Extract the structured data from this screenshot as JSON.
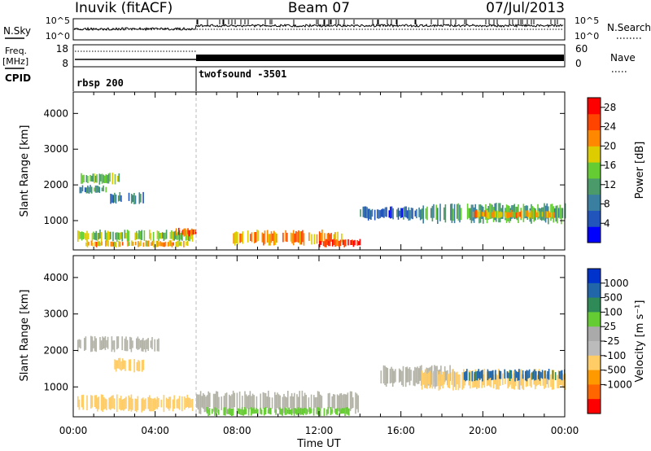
{
  "header": {
    "station": "Inuvik (fitACF)",
    "beam": "Beam 07",
    "date": "07/Jul/2013"
  },
  "scan_panels": {
    "nsky_label": "N.Sky",
    "nsearch_label": "N.Search",
    "noise_ticks": [
      "10^5",
      "10^0"
    ],
    "freq_label": "Freq.",
    "freq_unit": "[MHz]",
    "freq_ticks": [
      "18",
      "8"
    ],
    "nave_label": "Nave",
    "nave_ticks": [
      "60",
      "0"
    ],
    "cpid_label": "CPID",
    "cpid_segments": [
      {
        "name": "rbsp 200",
        "start_hour": 0,
        "end_hour": 6
      },
      {
        "name": "twofsound -3501",
        "start_hour": 6,
        "end_hour": 24
      }
    ]
  },
  "colors": {
    "power": [
      "#0000ff",
      "#2255bb",
      "#3b7fa0",
      "#4a9a6a",
      "#66cc33",
      "#ddcc00",
      "#ff8800",
      "#ff4400",
      "#ff0000"
    ],
    "velocity": [
      "#ff0000",
      "#ff6600",
      "#ff9900",
      "#ffcc66",
      "#bbbbbb",
      "#aaaaaa",
      "#66cc33",
      "#2e8b57",
      "#2266aa",
      "#0033cc"
    ],
    "ground_scatter": "#b4b4a8"
  },
  "chart_data": [
    {
      "type": "heatmap",
      "name": "power",
      "ylabel": "Slant Range [km]",
      "xlabel": "Time UT",
      "x_ticks": [
        "00:00",
        "04:00",
        "08:00",
        "12:00",
        "16:00",
        "20:00",
        "00:00"
      ],
      "y_ticks": [
        1000,
        2000,
        3000,
        4000
      ],
      "xlim": [
        0,
        24
      ],
      "ylim": [
        180,
        4600
      ],
      "colorbar": {
        "label": "Power [dB]",
        "ticks": [
          4,
          8,
          12,
          16,
          20,
          24,
          28
        ],
        "range": [
          0,
          30
        ]
      },
      "echo_regions": [
        {
          "t0": 0.3,
          "t1": 2.4,
          "r0": 2000,
          "r1": 2350,
          "level": 14
        },
        {
          "t0": 0.3,
          "t1": 1.6,
          "r0": 1750,
          "r1": 2000,
          "level": 10
        },
        {
          "t0": 1.8,
          "t1": 3.4,
          "r0": 1450,
          "r1": 1800,
          "level": 9
        },
        {
          "t0": 0.2,
          "t1": 5.8,
          "r0": 400,
          "r1": 750,
          "level": 15
        },
        {
          "t0": 0.6,
          "t1": 5.6,
          "r0": 250,
          "r1": 450,
          "level": 20
        },
        {
          "t0": 5.0,
          "t1": 6.0,
          "r0": 550,
          "r1": 800,
          "level": 26
        },
        {
          "t0": 7.8,
          "t1": 13.2,
          "r0": 300,
          "r1": 750,
          "level": 22
        },
        {
          "t0": 12.0,
          "t1": 14.0,
          "r0": 250,
          "r1": 500,
          "level": 26
        },
        {
          "t0": 14.0,
          "t1": 17.0,
          "r0": 1000,
          "r1": 1400,
          "level": 7
        },
        {
          "t0": 17.0,
          "t1": 24.0,
          "r0": 900,
          "r1": 1500,
          "level": 12
        },
        {
          "t0": 19.5,
          "t1": 23.5,
          "r0": 1050,
          "r1": 1300,
          "level": 20
        }
      ]
    },
    {
      "type": "heatmap",
      "name": "velocity",
      "ylabel": "Slant Range [km]",
      "xlabel": "Time UT",
      "x_ticks": [
        "00:00",
        "04:00",
        "08:00",
        "12:00",
        "16:00",
        "20:00",
        "00:00"
      ],
      "y_ticks": [
        1000,
        2000,
        3000,
        4000
      ],
      "xlim": [
        0,
        24
      ],
      "ylim": [
        180,
        4600
      ],
      "colorbar": {
        "label": "Velocity [m s⁻¹]",
        "ticks": [
          "1000",
          "500",
          "100",
          "25",
          "-25",
          "-100",
          "-500",
          "-1000"
        ]
      },
      "echo_regions": [
        {
          "t0": 0.2,
          "t1": 4.2,
          "r0": 1950,
          "r1": 2400,
          "level": "ground"
        },
        {
          "t0": 0.2,
          "t1": 5.8,
          "r0": 300,
          "r1": 800,
          "level": -300
        },
        {
          "t0": 2.0,
          "t1": 3.5,
          "r0": 1400,
          "r1": 1800,
          "level": -150
        },
        {
          "t0": 6.0,
          "t1": 14.0,
          "r0": 250,
          "r1": 900,
          "level": "ground"
        },
        {
          "t0": 6.5,
          "t1": 13.5,
          "r0": 200,
          "r1": 450,
          "level": 60
        },
        {
          "t0": 15.0,
          "t1": 18.5,
          "r0": 1000,
          "r1": 1600,
          "level": "ground"
        },
        {
          "t0": 17.0,
          "t1": 24.0,
          "r0": 900,
          "r1": 1500,
          "level": -150
        },
        {
          "t0": 19.0,
          "t1": 24.0,
          "r0": 1150,
          "r1": 1500,
          "level": 700
        }
      ]
    }
  ]
}
